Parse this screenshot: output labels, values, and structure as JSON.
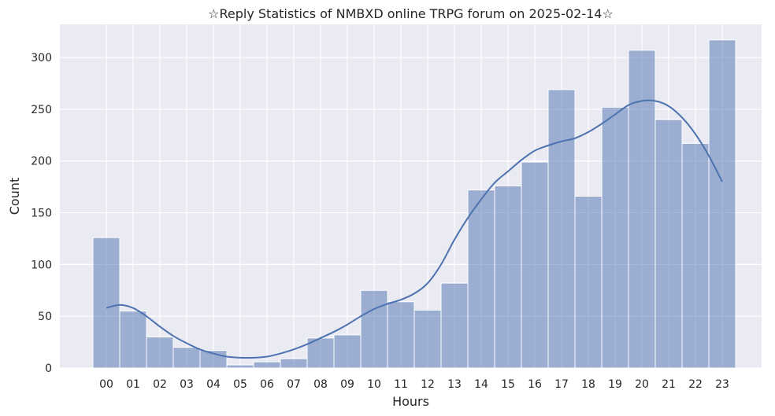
{
  "chart_data": {
    "type": "bar",
    "title": "☆Reply Statistics of NMBXD online TRPG forum on 2025-02-14☆",
    "xlabel": "Hours",
    "ylabel": "Count",
    "categories": [
      "00",
      "01",
      "02",
      "03",
      "04",
      "05",
      "06",
      "07",
      "08",
      "09",
      "10",
      "11",
      "12",
      "13",
      "14",
      "15",
      "16",
      "17",
      "18",
      "19",
      "20",
      "21",
      "22",
      "23"
    ],
    "values": [
      126,
      55,
      30,
      20,
      17,
      3,
      6,
      9,
      29,
      32,
      75,
      64,
      56,
      82,
      172,
      176,
      199,
      269,
      166,
      252,
      307,
      240,
      217,
      317
    ],
    "kde": {
      "x": [
        0,
        0.5,
        1,
        1.5,
        2,
        2.5,
        3,
        3.5,
        4,
        4.5,
        5,
        5.5,
        6,
        6.5,
        7,
        7.5,
        8,
        8.5,
        9,
        9.5,
        10,
        10.5,
        11,
        11.5,
        12,
        12.5,
        13,
        13.5,
        14,
        14.5,
        15,
        15.5,
        16,
        16.5,
        17,
        17.5,
        18,
        18.5,
        19,
        19.5,
        20,
        20.5,
        21,
        21.5,
        22,
        22.5,
        23
      ],
      "y": [
        58,
        61,
        58,
        50,
        40,
        31,
        24,
        18,
        14,
        11,
        10,
        10,
        11,
        14,
        18,
        23,
        29,
        35,
        42,
        50,
        57,
        62,
        66,
        72,
        82,
        100,
        124,
        145,
        163,
        179,
        190,
        201,
        210,
        215,
        219,
        222,
        228,
        236,
        245,
        254,
        258,
        258,
        253,
        242,
        226,
        205,
        180
      ]
    },
    "yticks": [
      0,
      50,
      100,
      150,
      200,
      250,
      300
    ],
    "ylim": [
      0,
      332
    ],
    "grid": true,
    "colors": {
      "background": "#eaeaf2",
      "bar_fill": "#4c72b0",
      "bar_opacity": 0.5,
      "bar_edge": "#ffffff",
      "kde_line": "#4c72b0",
      "grid": "#ffffff"
    }
  }
}
